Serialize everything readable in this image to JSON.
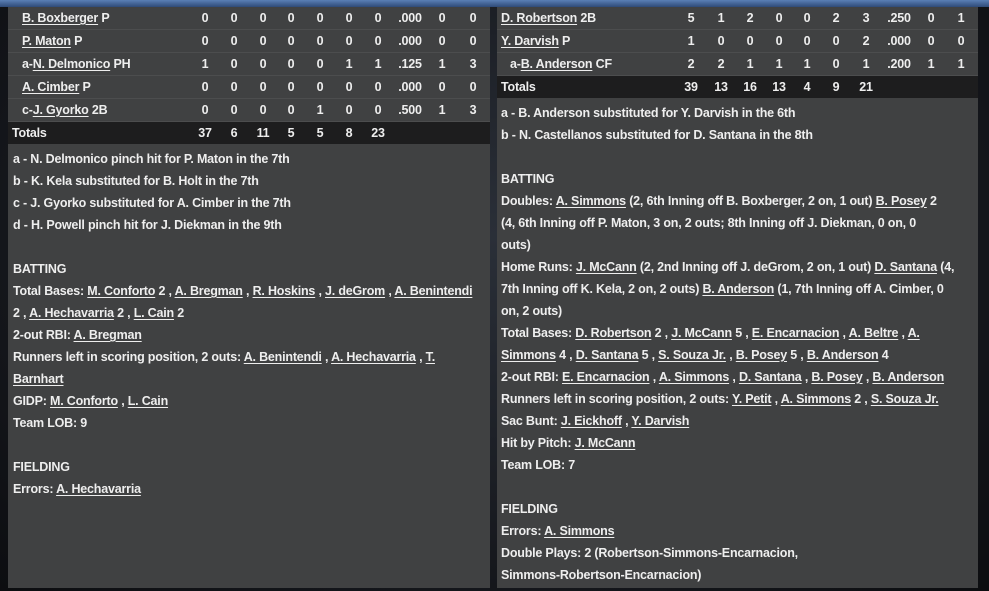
{
  "colors": {
    "panel": "#404142",
    "totals": "#1d1d1e",
    "text": "#eeeeee",
    "accent_strip": "#5a7fb5"
  },
  "left": {
    "rows": [
      {
        "prefix": "",
        "name": "B. Boxberger",
        "pos": "P",
        "stats": [
          "0",
          "0",
          "0",
          "0",
          "0",
          "0",
          "0",
          ".000",
          "0",
          "0"
        ]
      },
      {
        "prefix": "",
        "name": "P. Maton",
        "pos": "P",
        "stats": [
          "0",
          "0",
          "0",
          "0",
          "0",
          "0",
          "0",
          ".000",
          "0",
          "0"
        ]
      },
      {
        "prefix": "a-",
        "name": "N. Delmonico",
        "pos": "PH",
        "stats": [
          "1",
          "0",
          "0",
          "0",
          "0",
          "1",
          "1",
          ".125",
          "1",
          "3"
        ]
      },
      {
        "prefix": "",
        "name": "A. Cimber",
        "pos": "P",
        "stats": [
          "0",
          "0",
          "0",
          "0",
          "0",
          "0",
          "0",
          ".000",
          "0",
          "0"
        ]
      },
      {
        "prefix": "c-",
        "name": "J. Gyorko",
        "pos": "2B",
        "stats": [
          "0",
          "0",
          "0",
          "0",
          "1",
          "0",
          "0",
          ".500",
          "1",
          "3"
        ]
      }
    ],
    "totals": {
      "label": "Totals",
      "stats": [
        "37",
        "6",
        "11",
        "5",
        "5",
        "8",
        "23"
      ]
    },
    "lines": [
      [
        {
          "t": "a - N. Delmonico pinch hit for P. Maton in the 7th"
        }
      ],
      [
        {
          "t": "b - K. Kela substituted for B. Holt in the 7th"
        }
      ],
      [
        {
          "t": "c - J. Gyorko substituted for A. Cimber in the 7th"
        }
      ],
      [
        {
          "t": "d - H. Powell pinch hit for J. Diekman in the 9th"
        }
      ],
      [],
      [
        {
          "t": "BATTING"
        }
      ],
      [
        {
          "t": "Total Bases: "
        },
        {
          "t": "M. Conforto",
          "l": 1
        },
        {
          "t": " 2 , "
        },
        {
          "t": "A. Bregman",
          "l": 1
        },
        {
          "t": " , "
        },
        {
          "t": "R. Hoskins",
          "l": 1
        },
        {
          "t": " , "
        },
        {
          "t": "J. deGrom",
          "l": 1
        },
        {
          "t": " , "
        },
        {
          "t": "A. Benintendi",
          "l": 1
        }
      ],
      [
        {
          "t": " 2 , "
        },
        {
          "t": "A. Hechavarria",
          "l": 1
        },
        {
          "t": " 2 , "
        },
        {
          "t": "L. Cain",
          "l": 1
        },
        {
          "t": " 2"
        }
      ],
      [
        {
          "t": "2-out RBI: "
        },
        {
          "t": "A. Bregman",
          "l": 1
        }
      ],
      [
        {
          "t": "Runners left in scoring position, 2 outs: "
        },
        {
          "t": "A. Benintendi",
          "l": 1
        },
        {
          "t": " , "
        },
        {
          "t": "A. Hechavarria",
          "l": 1
        },
        {
          "t": " , "
        },
        {
          "t": "T.",
          "l": 1
        }
      ],
      [
        {
          "t": "Barnhart",
          "l": 1
        }
      ],
      [
        {
          "t": "GIDP: "
        },
        {
          "t": "M. Conforto",
          "l": 1
        },
        {
          "t": " , "
        },
        {
          "t": "L. Cain",
          "l": 1
        }
      ],
      [
        {
          "t": "Team LOB:  9"
        }
      ],
      [],
      [
        {
          "t": "FIELDING"
        }
      ],
      [
        {
          "t": "Errors: "
        },
        {
          "t": "A. Hechavarria",
          "l": 1
        }
      ]
    ]
  },
  "right": {
    "rows": [
      {
        "prefix": "",
        "name": "D. Robertson",
        "pos": "2B",
        "stats": [
          "5",
          "1",
          "2",
          "0",
          "0",
          "2",
          "3",
          ".250",
          "0",
          "1"
        ]
      },
      {
        "prefix": "",
        "name": "Y. Darvish",
        "pos": "P",
        "stats": [
          "1",
          "0",
          "0",
          "0",
          "0",
          "0",
          "2",
          ".000",
          "0",
          "0"
        ]
      },
      {
        "prefix": "a-",
        "name": "B. Anderson",
        "pos": "CF",
        "stats": [
          "2",
          "2",
          "1",
          "1",
          "1",
          "0",
          "1",
          ".200",
          "1",
          "1"
        ]
      }
    ],
    "totals": {
      "label": "Totals",
      "stats": [
        "39",
        "13",
        "16",
        "13",
        "4",
        "9",
        "21"
      ]
    },
    "lines": [
      [
        {
          "t": "a - B. Anderson substituted for Y. Darvish in the 6th"
        }
      ],
      [
        {
          "t": "b - N. Castellanos substituted for D. Santana in the 8th"
        }
      ],
      [],
      [
        {
          "t": "BATTING"
        }
      ],
      [
        {
          "t": "Doubles: "
        },
        {
          "t": "A. Simmons",
          "l": 1
        },
        {
          "t": " (2, 6th Inning off B. Boxberger, 2 on, 1 out) "
        },
        {
          "t": "B. Posey",
          "l": 1
        },
        {
          "t": " 2"
        }
      ],
      [
        {
          "t": "(4, 6th Inning off P. Maton, 3 on, 2 outs; 8th Inning off J. Diekman, 0 on, 0"
        }
      ],
      [
        {
          "t": "outs)"
        }
      ],
      [
        {
          "t": "Home Runs: "
        },
        {
          "t": "J. McCann",
          "l": 1
        },
        {
          "t": " (2, 2nd Inning off J. deGrom, 2 on, 1 out) "
        },
        {
          "t": "D. Santana",
          "l": 1
        },
        {
          "t": " (4,"
        }
      ],
      [
        {
          "t": "7th Inning off K. Kela, 2 on, 2 outs) "
        },
        {
          "t": "B. Anderson",
          "l": 1
        },
        {
          "t": " (1, 7th Inning off A. Cimber, 0"
        }
      ],
      [
        {
          "t": "on, 2 outs)"
        }
      ],
      [
        {
          "t": "Total Bases: "
        },
        {
          "t": "D. Robertson",
          "l": 1
        },
        {
          "t": " 2 , "
        },
        {
          "t": "J. McCann",
          "l": 1
        },
        {
          "t": " 5 , "
        },
        {
          "t": "E. Encarnacion",
          "l": 1
        },
        {
          "t": " , "
        },
        {
          "t": "A. Beltre",
          "l": 1
        },
        {
          "t": " , "
        },
        {
          "t": "A.",
          "l": 1
        }
      ],
      [
        {
          "t": "Simmons",
          "l": 1
        },
        {
          "t": " 4 , "
        },
        {
          "t": "D. Santana",
          "l": 1
        },
        {
          "t": " 5 , "
        },
        {
          "t": "S. Souza Jr.",
          "l": 1
        },
        {
          "t": " , "
        },
        {
          "t": "B. Posey",
          "l": 1
        },
        {
          "t": " 5 , "
        },
        {
          "t": "B. Anderson",
          "l": 1
        },
        {
          "t": " 4"
        }
      ],
      [
        {
          "t": "2-out RBI: "
        },
        {
          "t": "E. Encarnacion",
          "l": 1
        },
        {
          "t": " , "
        },
        {
          "t": "A. Simmons",
          "l": 1
        },
        {
          "t": " , "
        },
        {
          "t": "D. Santana",
          "l": 1
        },
        {
          "t": " , "
        },
        {
          "t": "B. Posey",
          "l": 1
        },
        {
          "t": " , "
        },
        {
          "t": "B. Anderson",
          "l": 1
        }
      ],
      [
        {
          "t": "Runners left in scoring position, 2 outs: "
        },
        {
          "t": "Y. Petit",
          "l": 1
        },
        {
          "t": " , "
        },
        {
          "t": "A. Simmons",
          "l": 1
        },
        {
          "t": " 2 , "
        },
        {
          "t": "S. Souza Jr.",
          "l": 1
        }
      ],
      [
        {
          "t": "Sac Bunt: "
        },
        {
          "t": "J. Eickhoff",
          "l": 1
        },
        {
          "t": " , "
        },
        {
          "t": "Y. Darvish",
          "l": 1
        }
      ],
      [
        {
          "t": "Hit by Pitch: "
        },
        {
          "t": "J. McCann",
          "l": 1
        }
      ],
      [
        {
          "t": "Team LOB:  7"
        }
      ],
      [],
      [
        {
          "t": "FIELDING"
        }
      ],
      [
        {
          "t": "Errors: "
        },
        {
          "t": "A. Simmons",
          "l": 1
        }
      ],
      [
        {
          "t": "Double Plays:  2 (Robertson-Simmons-Encarnacion,"
        }
      ],
      [
        {
          "t": "Simmons-Robertson-Encarnacion)"
        }
      ]
    ]
  }
}
